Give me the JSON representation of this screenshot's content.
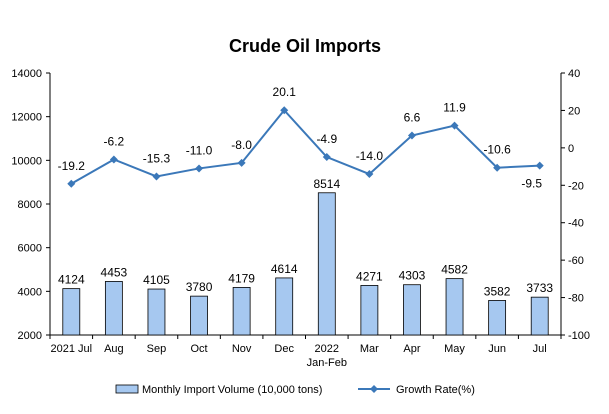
{
  "chart_data": {
    "type": "bar+line",
    "title": "Crude Oil Imports",
    "categories": [
      {
        "label": "2021 Jul",
        "sublabel": ""
      },
      {
        "label": "Aug",
        "sublabel": ""
      },
      {
        "label": "Sep",
        "sublabel": ""
      },
      {
        "label": "Oct",
        "sublabel": ""
      },
      {
        "label": "Nov",
        "sublabel": ""
      },
      {
        "label": "Dec",
        "sublabel": ""
      },
      {
        "label": "2022",
        "sublabel": "Jan-Feb"
      },
      {
        "label": "Mar",
        "sublabel": ""
      },
      {
        "label": "Apr",
        "sublabel": ""
      },
      {
        "label": "May",
        "sublabel": ""
      },
      {
        "label": "Jun",
        "sublabel": ""
      },
      {
        "label": "Jul",
        "sublabel": ""
      }
    ],
    "series": [
      {
        "name": "Monthly Import Volume (10,000 tons)",
        "kind": "bar",
        "axis": "left",
        "color": "#a6c8f0",
        "values": [
          4124,
          4453,
          4105,
          3780,
          4179,
          4614,
          8514,
          4271,
          4303,
          4582,
          3582,
          3733
        ]
      },
      {
        "name": "Growth Rate(%)",
        "kind": "line",
        "axis": "right",
        "color": "#3b78b9",
        "values": [
          -19.2,
          -6.2,
          -15.3,
          -11.0,
          -8.0,
          20.1,
          -4.9,
          -14.0,
          6.6,
          11.9,
          -10.6,
          -9.5
        ],
        "labels": [
          "-19.2",
          "-6.2",
          "-15.3",
          "-11.0",
          "-8.0",
          "20.1",
          "-4.9",
          "-14.0",
          "6.6",
          "11.9",
          "-10.6",
          "-9.5"
        ]
      }
    ],
    "left_axis": {
      "min": 2000,
      "max": 14000,
      "step": 2000,
      "ticks": [
        "2000",
        "4000",
        "6000",
        "8000",
        "10000",
        "12000",
        "14000"
      ]
    },
    "right_axis": {
      "min": -100,
      "max": 40,
      "step": 20,
      "ticks": [
        "-100",
        "-80",
        "-60",
        "-40",
        "-20",
        "0",
        "20",
        "40"
      ]
    },
    "legend_position": "bottom",
    "grid": false
  }
}
